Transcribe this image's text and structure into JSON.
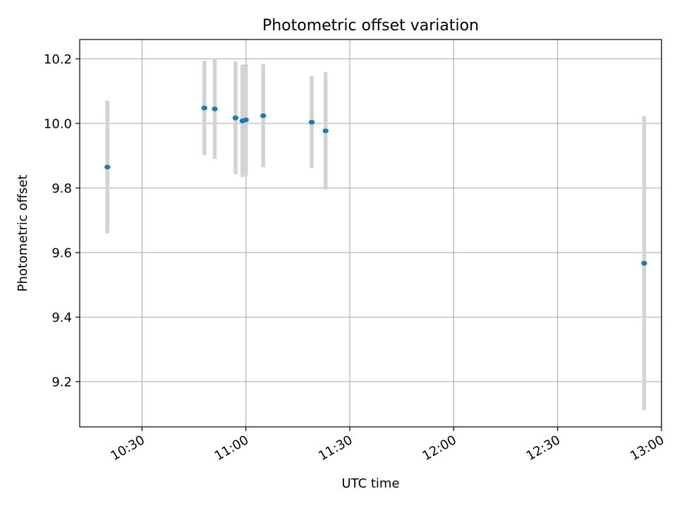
{
  "chart_data": {
    "type": "scatter",
    "title": "Photometric offset variation",
    "xlabel": "UTC time",
    "ylabel": "Photometric offset",
    "x_ticks": [
      "10:30",
      "11:00",
      "11:30",
      "12:00",
      "12:30",
      "13:00"
    ],
    "y_ticks": [
      9.2,
      9.4,
      9.6,
      9.8,
      10.0,
      10.2
    ],
    "xlim": [
      "10:12",
      "13:00"
    ],
    "ylim": [
      9.06,
      10.26
    ],
    "grid": true,
    "series": [
      {
        "x": [
          "10:20",
          "10:48",
          "10:51",
          "10:57",
          "10:59",
          "11:00",
          "11:05",
          "11:19",
          "11:23",
          "12:55"
        ],
        "y": [
          9.865,
          10.048,
          10.045,
          10.017,
          10.008,
          10.011,
          10.024,
          10.004,
          9.977,
          9.567
        ],
        "yerr": [
          0.206,
          0.146,
          0.155,
          0.175,
          0.174,
          0.172,
          0.16,
          0.143,
          0.182,
          0.455
        ]
      }
    ],
    "colors": {
      "marker": "#1f77b4",
      "errorbar": "#d3d3d3",
      "grid": "#b0b0b0"
    }
  }
}
